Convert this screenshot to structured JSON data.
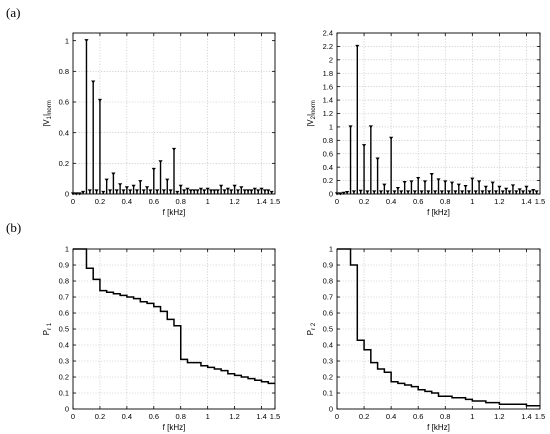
{
  "panel_labels": [
    "(a)",
    "(b)"
  ],
  "chart_data": [
    {
      "type": "stem",
      "ylabel": "|V",
      "ylabel_sub": "1",
      "ylabel_tail": "|",
      "ylabel_tail_sub": "norm",
      "xlabel": "f  [kHz]",
      "xlim": [
        0,
        1.5
      ],
      "ylim": [
        0,
        1.05
      ],
      "xticks": [
        0,
        0.2,
        0.4,
        0.6,
        0.8,
        1,
        1.2,
        1.4,
        1.5
      ],
      "xtick_labels": [
        "0",
        "0.2",
        "0.4",
        "0.6",
        "0.8",
        "1",
        "1.2",
        "1.4",
        "1.5"
      ],
      "yticks": [
        0,
        0.2,
        0.4,
        0.6,
        0.8,
        1
      ],
      "ytick_labels": [
        "0",
        "0.2",
        "0.4",
        "0.6",
        "0.8",
        "1"
      ],
      "grid": true,
      "x": [
        0.0,
        0.025,
        0.05,
        0.075,
        0.1,
        0.125,
        0.15,
        0.175,
        0.2,
        0.225,
        0.25,
        0.275,
        0.3,
        0.325,
        0.35,
        0.375,
        0.4,
        0.425,
        0.45,
        0.475,
        0.5,
        0.525,
        0.55,
        0.575,
        0.6,
        0.625,
        0.65,
        0.675,
        0.7,
        0.725,
        0.75,
        0.775,
        0.8,
        0.825,
        0.85,
        0.875,
        0.9,
        0.925,
        0.95,
        0.975,
        1.0,
        1.025,
        1.05,
        1.075,
        1.1,
        1.125,
        1.15,
        1.175,
        1.2,
        1.225,
        1.25,
        1.275,
        1.3,
        1.325,
        1.35,
        1.375,
        1.4,
        1.425,
        1.45,
        1.475
      ],
      "values": [
        0.0,
        0.0,
        0.0,
        0.01,
        1.0,
        0.02,
        0.73,
        0.02,
        0.61,
        0.01,
        0.09,
        0.02,
        0.13,
        0.02,
        0.06,
        0.02,
        0.04,
        0.02,
        0.05,
        0.02,
        0.08,
        0.02,
        0.04,
        0.02,
        0.16,
        0.02,
        0.21,
        0.02,
        0.09,
        0.02,
        0.29,
        0.01,
        0.05,
        0.02,
        0.03,
        0.02,
        0.02,
        0.02,
        0.03,
        0.02,
        0.03,
        0.02,
        0.02,
        0.02,
        0.05,
        0.02,
        0.03,
        0.02,
        0.05,
        0.02,
        0.04,
        0.02,
        0.02,
        0.02,
        0.03,
        0.02,
        0.03,
        0.02,
        0.02,
        0.01
      ]
    },
    {
      "type": "stem",
      "ylabel": "|V",
      "ylabel_sub": "2",
      "ylabel_tail": "|",
      "ylabel_tail_sub": "norm",
      "xlabel": "f  [kHz]",
      "xlim": [
        0,
        1.5
      ],
      "ylim": [
        0,
        2.4
      ],
      "xticks": [
        0,
        0.2,
        0.4,
        0.6,
        0.8,
        1,
        1.2,
        1.4,
        1.5
      ],
      "xtick_labels": [
        "0",
        "0.2",
        "0.4",
        "0.6",
        "0.8",
        "1",
        "1.2",
        "1.4",
        "1.5"
      ],
      "yticks": [
        0,
        0.2,
        0.4,
        0.6,
        0.8,
        1,
        1.2,
        1.4,
        1.6,
        1.8,
        2,
        2.2,
        2.4
      ],
      "ytick_labels": [
        "0",
        "0.2",
        "0.4",
        "0.6",
        "0.8",
        "1",
        "1.2",
        "1.4",
        "1.6",
        "1.8",
        "2",
        "2.2",
        "2.4"
      ],
      "grid": true,
      "x": [
        0.0,
        0.025,
        0.05,
        0.075,
        0.1,
        0.125,
        0.15,
        0.175,
        0.2,
        0.225,
        0.25,
        0.275,
        0.3,
        0.325,
        0.35,
        0.375,
        0.4,
        0.425,
        0.45,
        0.475,
        0.5,
        0.525,
        0.55,
        0.575,
        0.6,
        0.625,
        0.65,
        0.675,
        0.7,
        0.725,
        0.75,
        0.775,
        0.8,
        0.825,
        0.85,
        0.875,
        0.9,
        0.925,
        0.95,
        0.975,
        1.0,
        1.025,
        1.05,
        1.075,
        1.1,
        1.125,
        1.15,
        1.175,
        1.2,
        1.225,
        1.25,
        1.275,
        1.3,
        1.325,
        1.35,
        1.375,
        1.4,
        1.425,
        1.45,
        1.475
      ],
      "values": [
        0.0,
        0.0,
        0.01,
        0.02,
        1.0,
        0.03,
        2.2,
        0.04,
        0.72,
        0.03,
        1.0,
        0.03,
        0.52,
        0.03,
        0.13,
        0.03,
        0.83,
        0.03,
        0.08,
        0.03,
        0.17,
        0.03,
        0.18,
        0.03,
        0.23,
        0.03,
        0.18,
        0.03,
        0.29,
        0.03,
        0.21,
        0.03,
        0.18,
        0.03,
        0.16,
        0.03,
        0.13,
        0.03,
        0.11,
        0.03,
        0.22,
        0.03,
        0.18,
        0.03,
        0.1,
        0.03,
        0.16,
        0.03,
        0.1,
        0.03,
        0.07,
        0.03,
        0.12,
        0.03,
        0.06,
        0.03,
        0.1,
        0.03,
        0.05,
        0.03
      ]
    },
    {
      "type": "line",
      "step": true,
      "ylabel": "P",
      "ylabel_sub": "r 1",
      "xlabel": "f [kHz]",
      "xlim": [
        0,
        1.5
      ],
      "ylim": [
        0,
        1
      ],
      "xticks": [
        0,
        0.2,
        0.4,
        0.6,
        0.8,
        1,
        1.2,
        1.4,
        1.5
      ],
      "xtick_labels": [
        "0",
        "0.2",
        "0.4",
        "0.6",
        "0.8",
        "1",
        "1.2",
        "1.4",
        "1.5"
      ],
      "yticks": [
        0,
        0.1,
        0.2,
        0.3,
        0.4,
        0.5,
        0.6,
        0.7,
        0.8,
        0.9,
        1
      ],
      "ytick_labels": [
        "0",
        "0.1",
        "0.2",
        "0.3",
        "0.4",
        "0.5",
        "0.6",
        "0.7",
        "0.8",
        "0.9",
        "1"
      ],
      "grid": true,
      "x": [
        0.0,
        0.1,
        0.15,
        0.2,
        0.25,
        0.3,
        0.35,
        0.4,
        0.45,
        0.5,
        0.55,
        0.6,
        0.65,
        0.7,
        0.75,
        0.8,
        0.85,
        0.9,
        0.95,
        1.0,
        1.05,
        1.1,
        1.15,
        1.2,
        1.25,
        1.3,
        1.35,
        1.4,
        1.45
      ],
      "values": [
        1.0,
        0.88,
        0.81,
        0.74,
        0.73,
        0.72,
        0.71,
        0.7,
        0.69,
        0.67,
        0.66,
        0.64,
        0.61,
        0.56,
        0.52,
        0.31,
        0.29,
        0.29,
        0.27,
        0.26,
        0.25,
        0.24,
        0.22,
        0.21,
        0.2,
        0.19,
        0.18,
        0.17,
        0.16
      ]
    },
    {
      "type": "line",
      "step": true,
      "ylabel": "P",
      "ylabel_sub": "r 2",
      "xlabel": "f [kHz]",
      "xlim": [
        0,
        1.5
      ],
      "ylim": [
        0,
        1
      ],
      "xticks": [
        0,
        0.2,
        0.4,
        0.6,
        0.8,
        1,
        1.2,
        1.4,
        1.5
      ],
      "xtick_labels": [
        "0",
        "0.2",
        "0.4",
        "0.6",
        "0.8",
        "1",
        "1.2",
        "1.4",
        "1.5"
      ],
      "yticks": [
        0,
        0.1,
        0.2,
        0.3,
        0.4,
        0.5,
        0.6,
        0.7,
        0.8,
        0.9,
        1
      ],
      "ytick_labels": [
        "0",
        "0.1",
        "0.2",
        "0.3",
        "0.4",
        "0.5",
        "0.6",
        "0.7",
        "0.8",
        "0.9",
        "1"
      ],
      "grid": true,
      "x": [
        0.0,
        0.1,
        0.15,
        0.2,
        0.25,
        0.3,
        0.35,
        0.4,
        0.45,
        0.5,
        0.55,
        0.6,
        0.65,
        0.7,
        0.75,
        0.8,
        0.85,
        0.9,
        0.95,
        1.0,
        1.05,
        1.1,
        1.15,
        1.2,
        1.25,
        1.3,
        1.35,
        1.4,
        1.45
      ],
      "values": [
        1.0,
        0.9,
        0.43,
        0.37,
        0.29,
        0.25,
        0.23,
        0.17,
        0.16,
        0.15,
        0.14,
        0.12,
        0.11,
        0.1,
        0.08,
        0.08,
        0.07,
        0.07,
        0.06,
        0.05,
        0.05,
        0.04,
        0.04,
        0.03,
        0.03,
        0.03,
        0.03,
        0.02,
        0.02
      ]
    }
  ]
}
